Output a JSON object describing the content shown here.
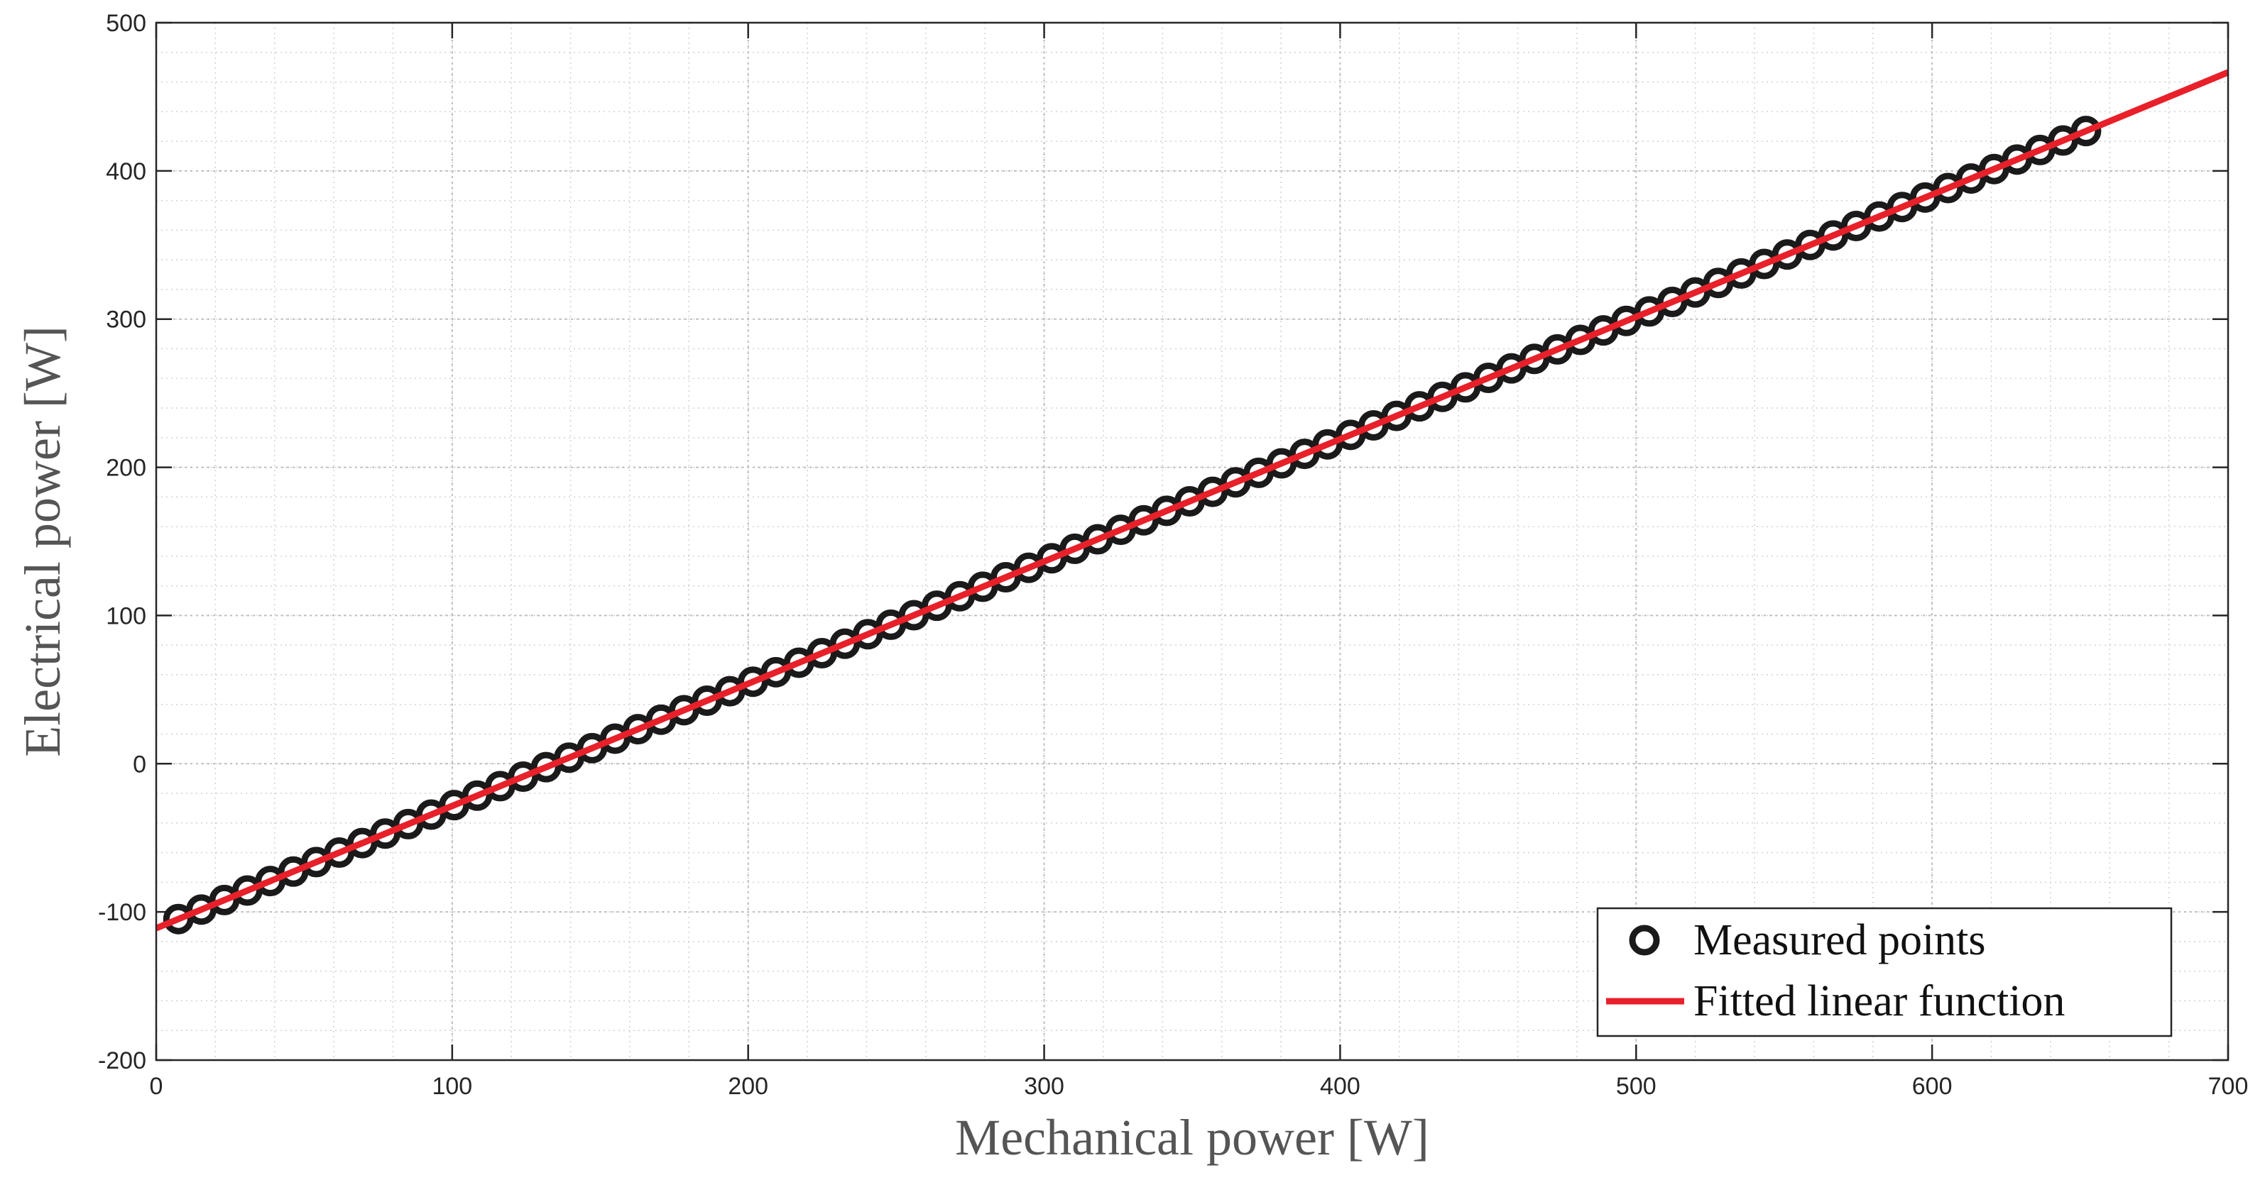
{
  "chart_data": {
    "type": "scatter",
    "title": "",
    "xlabel": "Mechanical power [W]",
    "ylabel": "Electrical power [W]",
    "xlim": [
      0,
      700
    ],
    "ylim": [
      -200,
      500
    ],
    "xticks": [
      0,
      100,
      200,
      300,
      400,
      500,
      600,
      700
    ],
    "yticks": [
      -200,
      -100,
      0,
      100,
      200,
      300,
      400,
      500
    ],
    "xtick_labels": [
      "0",
      "100",
      "200",
      "300",
      "400",
      "500",
      "600",
      "700"
    ],
    "ytick_labels": [
      "-200",
      "-100",
      "0",
      "100",
      "200",
      "300",
      "400",
      "500"
    ],
    "grid": true,
    "minor_grid": true,
    "legend": {
      "position": "bottom-right",
      "entries": [
        "Measured points",
        "Fitted linear function"
      ]
    },
    "series": [
      {
        "name": "Measured points",
        "kind": "scatter",
        "marker": "open-circle",
        "color": "#1a1a1a",
        "x_start": 7.5,
        "x_end": 652,
        "count": 84,
        "y_slope": 0.825,
        "y_intercept": -111
      },
      {
        "name": "Fitted linear function",
        "kind": "line",
        "color": "#e8202a",
        "x": [
          0,
          700
        ],
        "y": [
          -111,
          466.5
        ]
      }
    ]
  }
}
